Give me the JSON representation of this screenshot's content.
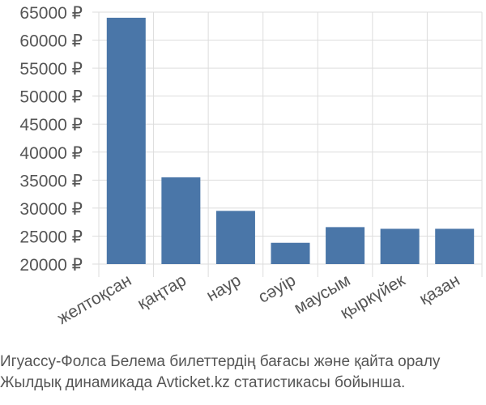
{
  "chart_data": {
    "type": "bar",
    "categories": [
      "желтоқсан",
      "қаңтар",
      "наур",
      "сәуір",
      "маусым",
      "қыркүйек",
      "қазан"
    ],
    "values": [
      64000,
      35500,
      29500,
      23800,
      26600,
      26300,
      26300
    ],
    "ylim": [
      20000,
      65000
    ],
    "yticks": [
      20000,
      25000,
      30000,
      35000,
      40000,
      45000,
      50000,
      55000,
      60000,
      65000
    ],
    "ytick_labels": [
      "20000 ₽",
      "25000 ₽",
      "30000 ₽",
      "35000 ₽",
      "40000 ₽",
      "45000 ₽",
      "50000 ₽",
      "55000 ₽",
      "60000 ₽",
      "65000 ₽"
    ],
    "bar_color": "#4a76a8",
    "grid": true
  },
  "caption": {
    "line1": "Игуассу-Фолса Белема билеттердің бағасы және қайта оралу",
    "line2": "Жылдық динамикада Avticket.kz статистикасы бойынша."
  }
}
